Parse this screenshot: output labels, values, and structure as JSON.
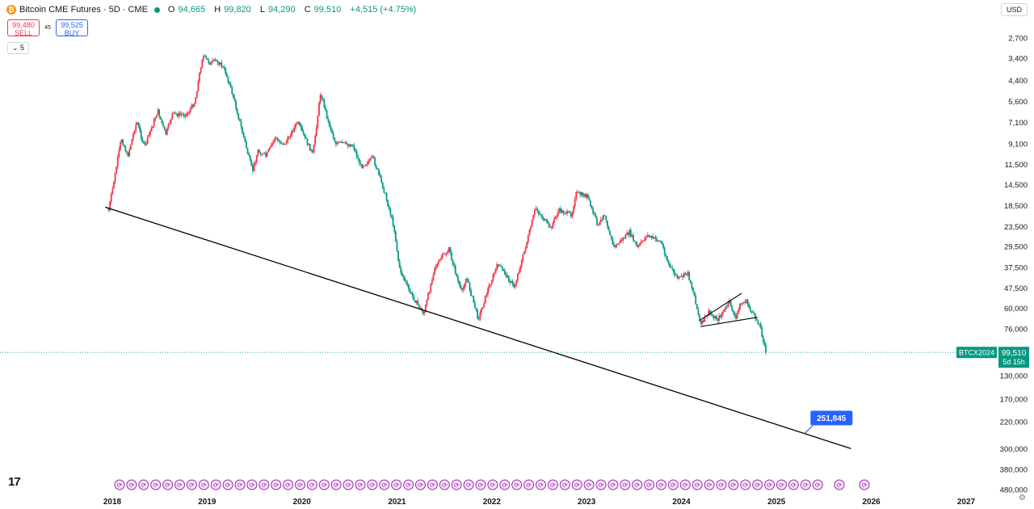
{
  "header": {
    "title": "Bitcoin CME Futures · 5D · CME",
    "coin_glyph": "₿",
    "ohlc": {
      "o_key": "O",
      "o": "94,665",
      "h_key": "H",
      "h": "99,820",
      "l_key": "L",
      "l": "94,290",
      "c_key": "C",
      "c": "99,510",
      "change": "+4,515 (+4.75%)"
    }
  },
  "trade": {
    "sell_price": "99,480",
    "sell_label": "SELL",
    "spread": "45",
    "buy_price": "99,525",
    "buy_label": "BUY"
  },
  "indicator_toggle": "⌄ 5",
  "currency": "USD",
  "colors": {
    "up": "#089981",
    "down": "#f23645",
    "trendline": "#000000",
    "callout": "#2962ff",
    "event_marker": "#9c27b0"
  },
  "chart_data": {
    "type": "candlestick",
    "title": "Bitcoin CME Futures · 5D · CME",
    "y_axis": {
      "position": "right",
      "ticks": [
        "2,700",
        "3,400",
        "4,400",
        "5,600",
        "7,100",
        "9,100",
        "11,500",
        "14,500",
        "18,500",
        "23,500",
        "29,500",
        "37,500",
        "47,500",
        "60,000",
        "76,000",
        "130,000",
        "170,000",
        "220,000",
        "300,000",
        "380,000",
        "480,000"
      ],
      "inverted_scale": true,
      "log_scale": true
    },
    "x_axis": {
      "ticks": [
        "2018",
        "2019",
        "2020",
        "2021",
        "2022",
        "2023",
        "2024",
        "2025",
        "2026",
        "2027"
      ]
    },
    "last_price": "99,510",
    "last_price_symbol": "BTCX2024",
    "countdown": "5d 15h",
    "price_path": [
      {
        "date": "2017-12-18",
        "close": 19500
      },
      {
        "date": "2018-01-05",
        "close": 14500
      },
      {
        "date": "2018-02-05",
        "close": 8500
      },
      {
        "date": "2018-03-01",
        "close": 10500
      },
      {
        "date": "2018-04-05",
        "close": 7000
      },
      {
        "date": "2018-05-05",
        "close": 9500
      },
      {
        "date": "2018-06-25",
        "close": 6200
      },
      {
        "date": "2018-07-25",
        "close": 8200
      },
      {
        "date": "2018-08-20",
        "close": 6500
      },
      {
        "date": "2018-10-15",
        "close": 6500
      },
      {
        "date": "2018-11-15",
        "close": 5600
      },
      {
        "date": "2018-12-15",
        "close": 3300
      },
      {
        "date": "2019-01-10",
        "close": 3600
      },
      {
        "date": "2019-02-10",
        "close": 3500
      },
      {
        "date": "2019-03-10",
        "close": 3900
      },
      {
        "date": "2019-04-10",
        "close": 5200
      },
      {
        "date": "2019-05-15",
        "close": 7800
      },
      {
        "date": "2019-06-25",
        "close": 12500
      },
      {
        "date": "2019-07-15",
        "close": 9800
      },
      {
        "date": "2019-08-15",
        "close": 10500
      },
      {
        "date": "2019-09-20",
        "close": 8500
      },
      {
        "date": "2019-10-25",
        "close": 9200
      },
      {
        "date": "2019-12-15",
        "close": 7100
      },
      {
        "date": "2020-02-12",
        "close": 10300
      },
      {
        "date": "2020-03-13",
        "close": 5000
      },
      {
        "date": "2020-04-10",
        "close": 7000
      },
      {
        "date": "2020-05-10",
        "close": 9000
      },
      {
        "date": "2020-07-15",
        "close": 9200
      },
      {
        "date": "2020-08-15",
        "close": 11800
      },
      {
        "date": "2020-10-01",
        "close": 10700
      },
      {
        "date": "2020-11-15",
        "close": 16000
      },
      {
        "date": "2020-12-20",
        "close": 23500
      },
      {
        "date": "2021-01-10",
        "close": 38000
      },
      {
        "date": "2021-02-20",
        "close": 50000
      },
      {
        "date": "2021-04-14",
        "close": 64000
      },
      {
        "date": "2021-05-25",
        "close": 38000
      },
      {
        "date": "2021-06-25",
        "close": 33000
      },
      {
        "date": "2021-07-20",
        "close": 30500
      },
      {
        "date": "2021-09-05",
        "close": 50000
      },
      {
        "date": "2021-09-25",
        "close": 42000
      },
      {
        "date": "2021-11-10",
        "close": 68000
      },
      {
        "date": "2021-12-20",
        "close": 47000
      },
      {
        "date": "2022-01-25",
        "close": 36000
      },
      {
        "date": "2022-03-28",
        "close": 47000
      },
      {
        "date": "2022-05-10",
        "close": 30000
      },
      {
        "date": "2022-06-18",
        "close": 19000
      },
      {
        "date": "2022-08-15",
        "close": 24000
      },
      {
        "date": "2022-09-15",
        "close": 19500
      },
      {
        "date": "2022-11-05",
        "close": 20500
      },
      {
        "date": "2022-11-20",
        "close": 16000
      },
      {
        "date": "2023-01-01",
        "close": 16500
      },
      {
        "date": "2023-02-15",
        "close": 23500
      },
      {
        "date": "2023-03-10",
        "close": 20000
      },
      {
        "date": "2023-04-15",
        "close": 30000
      },
      {
        "date": "2023-06-15",
        "close": 25000
      },
      {
        "date": "2023-07-15",
        "close": 30000
      },
      {
        "date": "2023-08-20",
        "close": 26000
      },
      {
        "date": "2023-10-15",
        "close": 28000
      },
      {
        "date": "2023-11-15",
        "close": 37000
      },
      {
        "date": "2023-12-20",
        "close": 43000
      },
      {
        "date": "2024-01-25",
        "close": 40000
      },
      {
        "date": "2024-02-20",
        "close": 52000
      },
      {
        "date": "2024-03-14",
        "close": 73000
      },
      {
        "date": "2024-04-15",
        "close": 63000
      },
      {
        "date": "2024-05-20",
        "close": 68000
      },
      {
        "date": "2024-07-05",
        "close": 56000
      },
      {
        "date": "2024-07-28",
        "close": 69000
      },
      {
        "date": "2024-08-10",
        "close": 58000
      },
      {
        "date": "2024-09-05",
        "close": 55000
      },
      {
        "date": "2024-09-30",
        "close": 64000
      },
      {
        "date": "2024-10-28",
        "close": 72000
      },
      {
        "date": "2024-11-12",
        "close": 88000
      },
      {
        "date": "2024-11-25",
        "close": 99510
      }
    ],
    "drawings": {
      "trendline": {
        "from": {
          "date": "2017-12-05",
          "price": 18800
        },
        "to": {
          "date": "2025-10-15",
          "price": 300000
        }
      },
      "wedge_upper": {
        "from": {
          "date": "2024-03-10",
          "price": 69000
        },
        "to": {
          "date": "2024-08-20",
          "price": 50500
        }
      },
      "wedge_lower": {
        "from": {
          "date": "2024-03-14",
          "price": 74000
        },
        "to": {
          "date": "2024-10-20",
          "price": 66500
        }
      },
      "callout": {
        "text": "251,845",
        "price": 251845,
        "date": "2025-04-20"
      }
    },
    "event_markers": {
      "glyph": "⟳",
      "count": 59
    }
  },
  "branding": {
    "logo": "17"
  }
}
